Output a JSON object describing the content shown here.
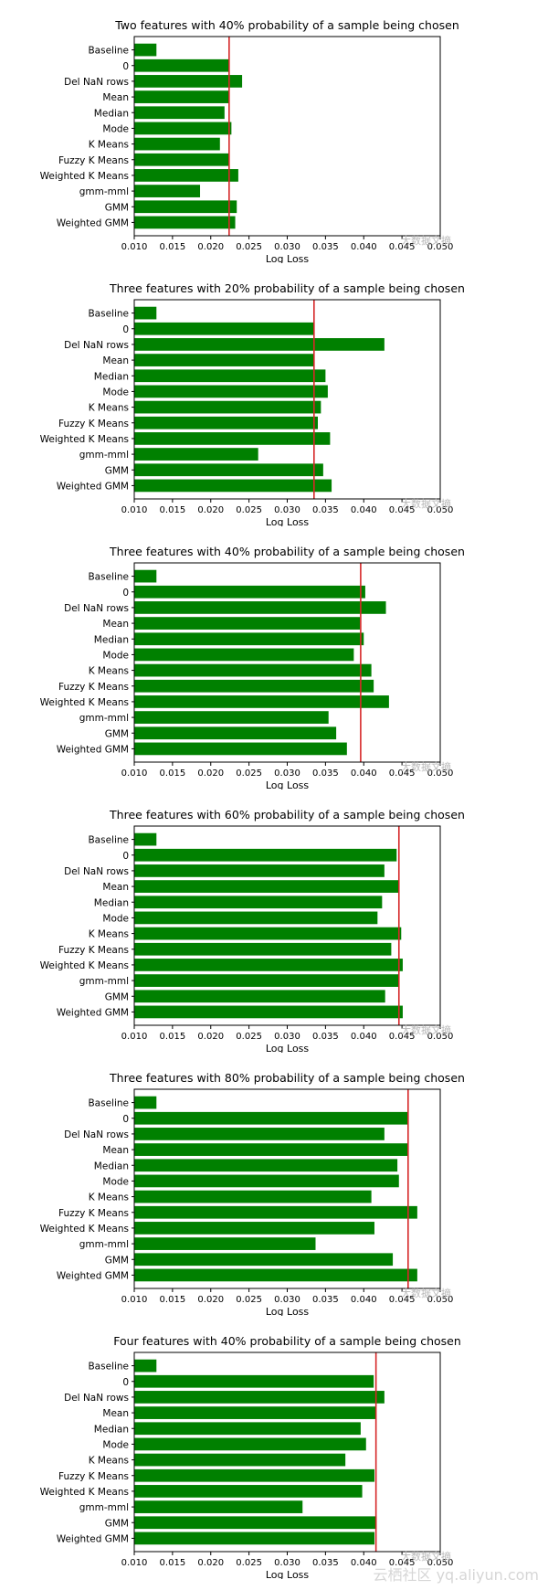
{
  "chart_data": [
    {
      "type": "bar",
      "orientation": "horizontal",
      "title": "Two features with 40% probability of a sample being chosen",
      "xlabel": "Log Loss",
      "categories": [
        "Baseline",
        "0",
        "Del NaN rows",
        "Mean",
        "Median",
        "Mode",
        "K Means",
        "Fuzzy K Means",
        "Weighted K Means",
        "gmm-mml",
        "GMM",
        "Weighted GMM"
      ],
      "values": [
        0.0129,
        0.0224,
        0.0241,
        0.0224,
        0.0218,
        0.0227,
        0.0212,
        0.0224,
        0.0236,
        0.0186,
        0.0234,
        0.0232
      ],
      "reference_line": 0.0224,
      "xlim": [
        0.01,
        0.05
      ],
      "xticks": [
        "0.010",
        "0.015",
        "0.020",
        "0.025",
        "0.030",
        "0.035",
        "0.040",
        "0.045",
        "0.050"
      ],
      "bar_color": "#008000",
      "line_color": "#d62728"
    },
    {
      "type": "bar",
      "orientation": "horizontal",
      "title": "Three features with 20% probability of a sample being chosen",
      "xlabel": "Log Loss",
      "categories": [
        "Baseline",
        "0",
        "Del NaN rows",
        "Mean",
        "Median",
        "Mode",
        "K Means",
        "Fuzzy K Means",
        "Weighted K Means",
        "gmm-mml",
        "GMM",
        "Weighted GMM"
      ],
      "values": [
        0.0129,
        0.0335,
        0.0427,
        0.0335,
        0.035,
        0.0353,
        0.0344,
        0.034,
        0.0356,
        0.0262,
        0.0347,
        0.0358
      ],
      "reference_line": 0.0335,
      "xlim": [
        0.01,
        0.05
      ],
      "xticks": [
        "0.010",
        "0.015",
        "0.020",
        "0.025",
        "0.030",
        "0.035",
        "0.040",
        "0.045",
        "0.050"
      ],
      "bar_color": "#008000",
      "line_color": "#d62728"
    },
    {
      "type": "bar",
      "orientation": "horizontal",
      "title": "Three features with 40% probability of a sample being chosen",
      "xlabel": "Log Loss",
      "categories": [
        "Baseline",
        "0",
        "Del NaN rows",
        "Mean",
        "Median",
        "Mode",
        "K Means",
        "Fuzzy K Means",
        "Weighted K Means",
        "gmm-mml",
        "GMM",
        "Weighted GMM"
      ],
      "values": [
        0.0129,
        0.0402,
        0.0429,
        0.0395,
        0.04,
        0.0387,
        0.041,
        0.0413,
        0.0433,
        0.0354,
        0.0364,
        0.0378
      ],
      "reference_line": 0.0396,
      "xlim": [
        0.01,
        0.05
      ],
      "xticks": [
        "0.010",
        "0.015",
        "0.020",
        "0.025",
        "0.030",
        "0.035",
        "0.040",
        "0.045",
        "0.050"
      ],
      "bar_color": "#008000",
      "line_color": "#d62728"
    },
    {
      "type": "bar",
      "orientation": "horizontal",
      "title": "Three features with 60% probability of a sample being chosen",
      "xlabel": "Log Loss",
      "categories": [
        "Baseline",
        "0",
        "Del NaN rows",
        "Mean",
        "Median",
        "Mode",
        "K Means",
        "Fuzzy K Means",
        "Weighted K Means",
        "gmm-mml",
        "GMM",
        "Weighted GMM"
      ],
      "values": [
        0.0129,
        0.0443,
        0.0427,
        0.0446,
        0.0424,
        0.0418,
        0.0449,
        0.0436,
        0.0451,
        0.0446,
        0.0428,
        0.0451
      ],
      "reference_line": 0.0446,
      "xlim": [
        0.01,
        0.05
      ],
      "xticks": [
        "0.010",
        "0.015",
        "0.020",
        "0.025",
        "0.030",
        "0.035",
        "0.040",
        "0.045",
        "0.050"
      ],
      "bar_color": "#008000",
      "line_color": "#d62728"
    },
    {
      "type": "bar",
      "orientation": "horizontal",
      "title": "Three features with 80% probability of a sample being chosen",
      "xlabel": "Log Loss",
      "categories": [
        "Baseline",
        "0",
        "Del NaN rows",
        "Mean",
        "Median",
        "Mode",
        "K Means",
        "Fuzzy K Means",
        "Weighted K Means",
        "gmm-mml",
        "GMM",
        "Weighted GMM"
      ],
      "values": [
        0.0129,
        0.0457,
        0.0427,
        0.0457,
        0.0444,
        0.0446,
        0.041,
        0.047,
        0.0414,
        0.0337,
        0.0438,
        0.047
      ],
      "reference_line": 0.0458,
      "xlim": [
        0.01,
        0.05
      ],
      "xticks": [
        "0.010",
        "0.015",
        "0.020",
        "0.025",
        "0.030",
        "0.035",
        "0.040",
        "0.045",
        "0.050"
      ],
      "bar_color": "#008000",
      "line_color": "#d62728"
    },
    {
      "type": "bar",
      "orientation": "horizontal",
      "title": "Four features with 40% probability of a sample being chosen",
      "xlabel": "Log Loss",
      "categories": [
        "Baseline",
        "0",
        "Del NaN rows",
        "Mean",
        "Median",
        "Mode",
        "K Means",
        "Fuzzy K Means",
        "Weighted K Means",
        "gmm-mml",
        "GMM",
        "Weighted GMM"
      ],
      "values": [
        0.0129,
        0.0413,
        0.0427,
        0.0416,
        0.0396,
        0.0403,
        0.0376,
        0.0414,
        0.0398,
        0.032,
        0.0417,
        0.0414
      ],
      "reference_line": 0.0416,
      "xlim": [
        0.01,
        0.05
      ],
      "xticks": [
        "0.010",
        "0.015",
        "0.020",
        "0.025",
        "0.030",
        "0.035",
        "0.040",
        "0.045",
        "0.050"
      ],
      "bar_color": "#008000",
      "line_color": "#d62728"
    }
  ],
  "watermark": "大数据文摘",
  "footer_watermark": "云栖社区 yq.aliyun.com"
}
